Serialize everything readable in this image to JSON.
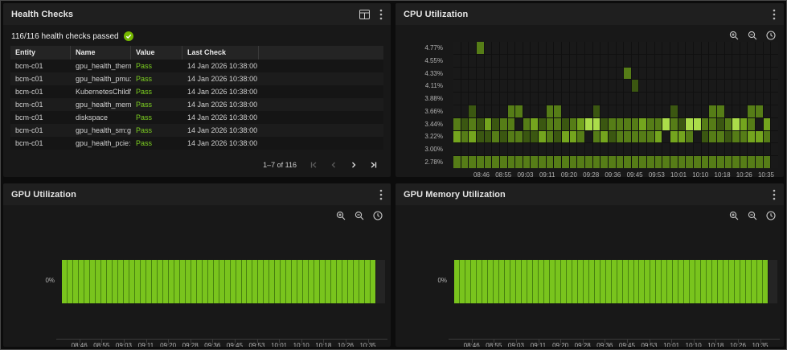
{
  "panels": {
    "health_checks": {
      "title": "Health Checks",
      "status_text": "116/116 health checks passed",
      "status_icon": "check-circle",
      "table": {
        "columns": [
          "Entity",
          "Name",
          "Value",
          "Last Check"
        ],
        "rows": [
          {
            "entity": "bcm-c01",
            "name": "gpu_health_therma…",
            "value": "Pass",
            "last_check": "14 Jan 2026 10:38:00"
          },
          {
            "entity": "bcm-c01",
            "name": "gpu_health_pmu:gp…",
            "value": "Pass",
            "last_check": "14 Jan 2026 10:38:00"
          },
          {
            "entity": "bcm-c01",
            "name": "KubernetesChildNo…",
            "value": "Pass",
            "last_check": "14 Jan 2026 10:38:00"
          },
          {
            "entity": "bcm-c01",
            "name": "gpu_health_mem:g…",
            "value": "Pass",
            "last_check": "14 Jan 2026 10:38:00"
          },
          {
            "entity": "bcm-c01",
            "name": "diskspace",
            "value": "Pass",
            "last_check": "14 Jan 2026 10:38:00"
          },
          {
            "entity": "bcm-c01",
            "name": "gpu_health_sm:gpu0",
            "value": "Pass",
            "last_check": "14 Jan 2026 10:38:00"
          },
          {
            "entity": "bcm-c01",
            "name": "gpu_health_pcie:gp…",
            "value": "Pass",
            "last_check": "14 Jan 2026 10:38:00"
          }
        ]
      },
      "pagination": {
        "range_label": "1–7 of 116"
      }
    },
    "cpu": {
      "title": "CPU Utilization"
    },
    "gpu": {
      "title": "GPU Utilization"
    },
    "gpu_memory": {
      "title": "GPU Memory Utilization"
    }
  },
  "colors": {
    "nvidia_green": "#76b900",
    "pass_green": "#7ccf21",
    "bar_green": "#79c41d",
    "heatmap_palette": [
      "#191919",
      "#3b5711",
      "#567d17",
      "#74a51e",
      "#abdd4a"
    ]
  },
  "chart_data": [
    {
      "type": "heatmap",
      "title": "CPU Utilization",
      "x_labels": [
        "08:46",
        "08:55",
        "09:03",
        "09:11",
        "09:20",
        "09:28",
        "09:36",
        "09:45",
        "09:53",
        "10:01",
        "10:10",
        "10:18",
        "10:26",
        "10:35"
      ],
      "y_labels": [
        "4.77%",
        "4.55%",
        "4.33%",
        "4.11%",
        "3.88%",
        "3.66%",
        "3.44%",
        "3.22%",
        "3.00%",
        "2.78%"
      ],
      "y_range": [
        "2.78%",
        "4.77%"
      ],
      "columns": 42,
      "legend": false,
      "intensity_levels": {
        "0": "empty",
        "1": "dark-green",
        "2": "medium-green",
        "3": "bright-green",
        "4": "lime"
      },
      "rows": [
        [
          0,
          0,
          0,
          2,
          0,
          0,
          0,
          0,
          0,
          0,
          0,
          0,
          0,
          0,
          0,
          0,
          0,
          0,
          0,
          0,
          0,
          0,
          0,
          0,
          0,
          0,
          0,
          0,
          0,
          0,
          0,
          0,
          0,
          0,
          0,
          0,
          0,
          0,
          0,
          0,
          0,
          0
        ],
        [
          0,
          0,
          0,
          0,
          0,
          0,
          0,
          0,
          0,
          0,
          0,
          0,
          0,
          0,
          0,
          0,
          0,
          0,
          0,
          0,
          0,
          0,
          0,
          0,
          0,
          0,
          0,
          0,
          0,
          0,
          0,
          0,
          0,
          0,
          0,
          0,
          0,
          0,
          0,
          0,
          0,
          0
        ],
        [
          0,
          0,
          0,
          0,
          0,
          0,
          0,
          0,
          0,
          0,
          0,
          0,
          0,
          0,
          0,
          0,
          0,
          0,
          0,
          0,
          0,
          0,
          2,
          0,
          0,
          0,
          0,
          0,
          0,
          0,
          0,
          0,
          0,
          0,
          0,
          0,
          0,
          0,
          0,
          0,
          0,
          0
        ],
        [
          0,
          0,
          0,
          0,
          0,
          0,
          0,
          0,
          0,
          0,
          0,
          0,
          0,
          0,
          0,
          0,
          0,
          0,
          0,
          0,
          0,
          0,
          0,
          1,
          0,
          0,
          0,
          0,
          0,
          0,
          0,
          0,
          0,
          0,
          0,
          0,
          0,
          0,
          0,
          0,
          0,
          0
        ],
        [
          0,
          0,
          0,
          0,
          0,
          0,
          0,
          0,
          0,
          0,
          0,
          0,
          0,
          0,
          0,
          0,
          0,
          0,
          0,
          0,
          0,
          0,
          0,
          0,
          0,
          0,
          0,
          0,
          0,
          0,
          0,
          0,
          0,
          0,
          0,
          0,
          0,
          0,
          0,
          0,
          0,
          0
        ],
        [
          0,
          0,
          1,
          0,
          0,
          0,
          0,
          2,
          2,
          0,
          0,
          0,
          2,
          2,
          0,
          0,
          0,
          0,
          1,
          0,
          0,
          0,
          0,
          0,
          0,
          0,
          0,
          0,
          1,
          0,
          0,
          0,
          0,
          2,
          2,
          0,
          0,
          0,
          2,
          2,
          0,
          0
        ],
        [
          2,
          1,
          2,
          1,
          3,
          1,
          2,
          2,
          0,
          2,
          3,
          1,
          2,
          2,
          1,
          2,
          3,
          4,
          4,
          1,
          2,
          2,
          2,
          2,
          3,
          2,
          2,
          4,
          2,
          1,
          4,
          4,
          2,
          2,
          1,
          2,
          4,
          3,
          2,
          0,
          3,
          0
        ],
        [
          3,
          2,
          3,
          1,
          1,
          2,
          1,
          2,
          2,
          1,
          1,
          3,
          2,
          1,
          3,
          3,
          2,
          0,
          2,
          3,
          1,
          2,
          2,
          2,
          2,
          2,
          3,
          0,
          3,
          3,
          2,
          0,
          1,
          2,
          2,
          1,
          2,
          2,
          3,
          3,
          2,
          0
        ],
        [
          0,
          0,
          0,
          0,
          0,
          0,
          0,
          0,
          0,
          0,
          0,
          0,
          0,
          0,
          0,
          0,
          0,
          0,
          0,
          0,
          0,
          0,
          0,
          0,
          0,
          0,
          0,
          0,
          0,
          0,
          0,
          0,
          0,
          0,
          0,
          0,
          0,
          0,
          0,
          0,
          0,
          0
        ],
        [
          2,
          2,
          2,
          2,
          2,
          2,
          2,
          2,
          2,
          2,
          2,
          2,
          2,
          2,
          2,
          2,
          2,
          2,
          2,
          2,
          2,
          2,
          2,
          2,
          2,
          2,
          2,
          2,
          2,
          2,
          2,
          2,
          2,
          2,
          2,
          2,
          2,
          2,
          2,
          2,
          2,
          0
        ]
      ]
    },
    {
      "type": "bar",
      "title": "GPU Utilization",
      "x_labels": [
        "08:46",
        "08:55",
        "09:03",
        "09:11",
        "09:20",
        "09:28",
        "09:36",
        "09:45",
        "09:53",
        "10:01",
        "10:10",
        "10:18",
        "10:26",
        "10:35"
      ],
      "y_tick_labels": [
        "0%"
      ],
      "bar_count": 56,
      "bars_uniform_value": "0%",
      "bar_color": "#79c41d"
    },
    {
      "type": "bar",
      "title": "GPU Memory Utilization",
      "x_labels": [
        "08:46",
        "08:55",
        "09:03",
        "09:11",
        "09:20",
        "09:28",
        "09:36",
        "09:45",
        "09:53",
        "10:01",
        "10:10",
        "10:18",
        "10:26",
        "10:35"
      ],
      "y_tick_labels": [
        "0%"
      ],
      "bar_count": 56,
      "bars_uniform_value": "0%",
      "bar_color": "#79c41d"
    }
  ]
}
